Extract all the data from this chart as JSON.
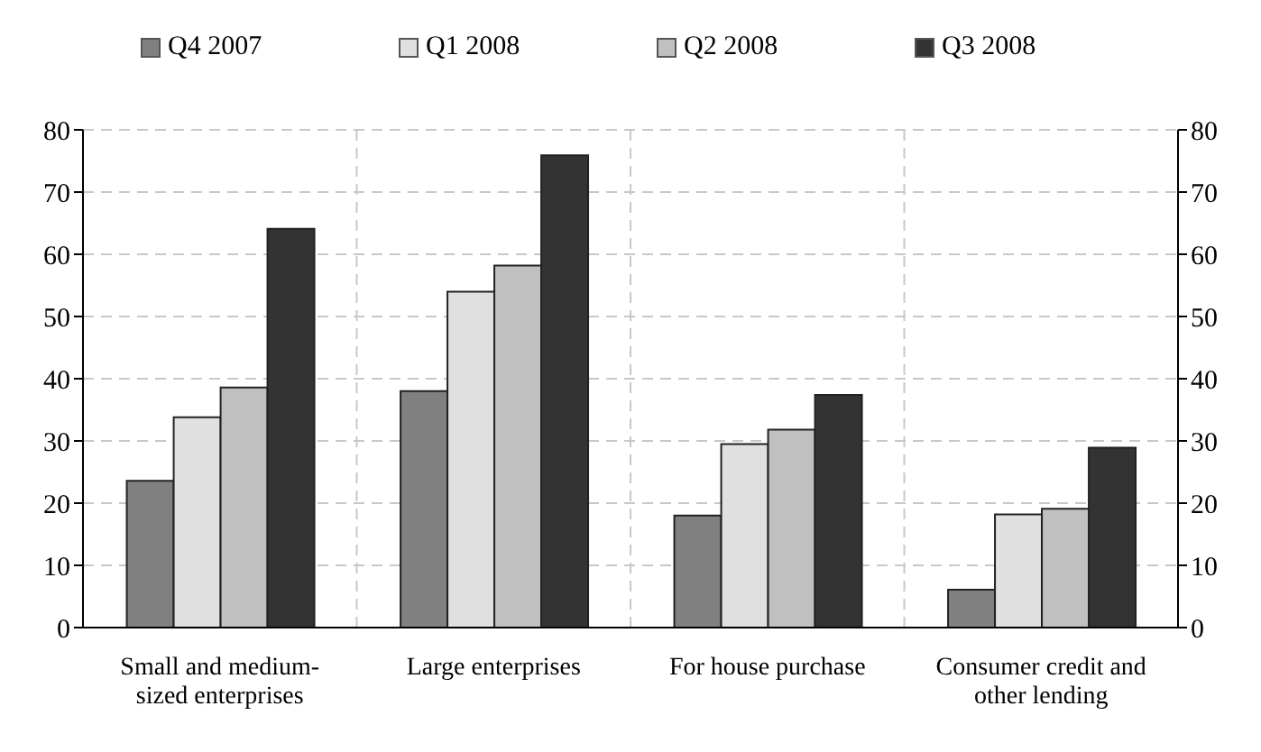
{
  "chart_data": {
    "type": "bar",
    "categories": [
      "Small and medium-sized enterprises",
      "Large enterprises",
      "For house purchase",
      "Consumer credit and other lending"
    ],
    "series": [
      {
        "name": "Q4 2007",
        "color": "#808080",
        "values": [
          23.6,
          38,
          18,
          6.1
        ]
      },
      {
        "name": "Q1 2008",
        "color": "#e0e0e0",
        "values": [
          33.8,
          54,
          29.5,
          18.2
        ]
      },
      {
        "name": "Q2 2008",
        "color": "#c0c0c0",
        "values": [
          38.6,
          58.2,
          31.8,
          19.1
        ]
      },
      {
        "name": "Q3 2008",
        "color": "#333333",
        "values": [
          64.1,
          75.9,
          37.4,
          28.9
        ]
      }
    ],
    "ylim": [
      0,
      80
    ],
    "yticks": [
      0,
      10,
      20,
      30,
      40,
      50,
      60,
      70,
      80
    ],
    "y2lim": [
      0,
      80
    ],
    "y2ticks": [
      0,
      10,
      20,
      30,
      40,
      50,
      60,
      70,
      80
    ],
    "grid": true,
    "legend": "top"
  }
}
